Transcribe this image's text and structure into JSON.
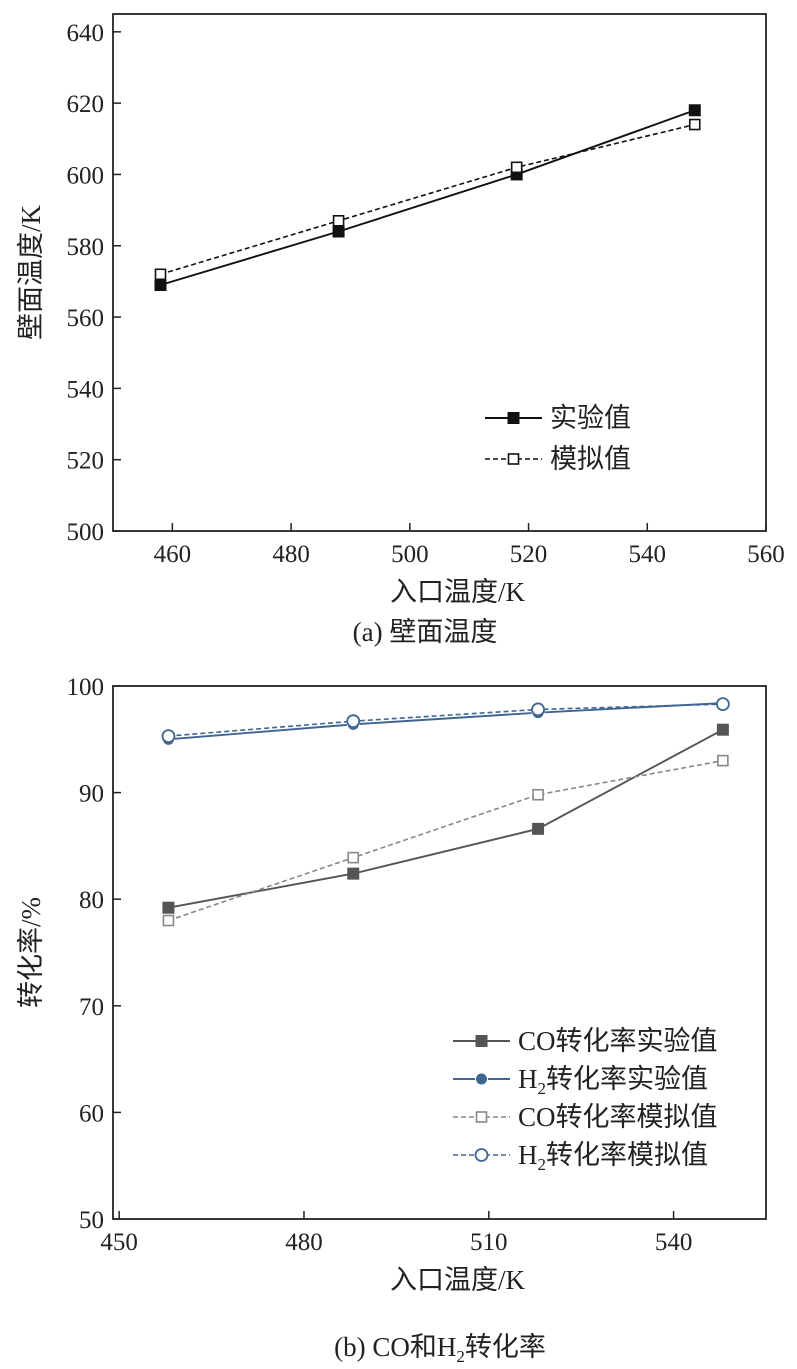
{
  "figure": {
    "panel_a_caption": "(a) 壁面温度",
    "panel_b_caption_prefix": "(b) CO和H",
    "panel_b_caption_sub": "2",
    "panel_b_caption_suffix": "转化率"
  },
  "chart_data": [
    {
      "type": "line",
      "panel": "a",
      "title": "",
      "xlabel": "入口温度/K",
      "ylabel": "壁面温度/K",
      "xlim": [
        450,
        560
      ],
      "ylim": [
        500,
        645
      ],
      "xticks": [
        460,
        480,
        500,
        520,
        540,
        560
      ],
      "yticks": [
        500,
        520,
        540,
        560,
        580,
        600,
        620,
        640
      ],
      "legend_position": "bottom-right",
      "series": [
        {
          "name": "实验值",
          "style": "solid",
          "marker": "filled-square",
          "color": "#111111",
          "x": [
            458,
            488,
            518,
            548
          ],
          "y": [
            569,
            584,
            600,
            618
          ]
        },
        {
          "name": "模拟值",
          "style": "dashed",
          "marker": "open-square",
          "color": "#111111",
          "x": [
            458,
            488,
            518,
            548
          ],
          "y": [
            572,
            587,
            602,
            614
          ]
        }
      ]
    },
    {
      "type": "line",
      "panel": "b",
      "title": "",
      "xlabel": "入口温度/K",
      "ylabel": "转化率/%",
      "xlim": [
        449,
        555
      ],
      "ylim": [
        50,
        100
      ],
      "xticks": [
        450,
        480,
        510,
        540
      ],
      "yticks": [
        50,
        60,
        70,
        80,
        90,
        100
      ],
      "legend_position": "bottom-right",
      "series": [
        {
          "name": "CO转化率实验值",
          "legend_main": "CO转化率实验值",
          "legend_sub": "",
          "legend_tail": "",
          "style": "solid",
          "marker": "filled-square",
          "color": "#555555",
          "x": [
            458,
            488,
            518,
            548
          ],
          "y": [
            79.2,
            82.4,
            86.6,
            95.9
          ]
        },
        {
          "name": "H2转化率实验值",
          "legend_main": "H",
          "legend_sub": "2",
          "legend_tail": "转化率实验值",
          "style": "solid",
          "marker": "filled-circle",
          "color": "#3f6591",
          "x": [
            458,
            488,
            518,
            548
          ],
          "y": [
            95.0,
            96.4,
            97.5,
            98.4
          ]
        },
        {
          "name": "CO转化率模拟值",
          "legend_main": "CO转化率模拟值",
          "legend_sub": "",
          "legend_tail": "",
          "style": "dashed",
          "marker": "open-square",
          "color": "#888888",
          "x": [
            458,
            488,
            518,
            548
          ],
          "y": [
            78.0,
            83.9,
            89.8,
            93.0
          ]
        },
        {
          "name": "H2转化率模拟值",
          "legend_main": "H",
          "legend_sub": "2",
          "legend_tail": "转化率模拟值",
          "style": "dashed",
          "marker": "open-circle",
          "color": "#3f6591",
          "x": [
            458,
            488,
            518,
            548
          ],
          "y": [
            95.3,
            96.7,
            97.8,
            98.3
          ]
        }
      ]
    }
  ]
}
